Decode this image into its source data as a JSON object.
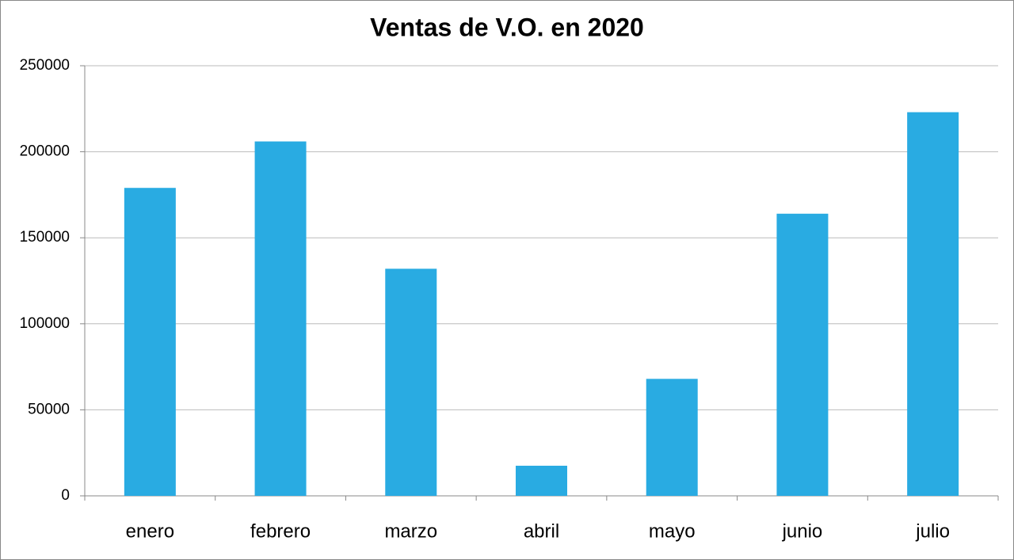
{
  "chart_data": {
    "type": "bar",
    "title": "Ventas de V.O. en 2020",
    "categories": [
      "enero",
      "febrero",
      "marzo",
      "abril",
      "mayo",
      "junio",
      "julio"
    ],
    "values": [
      179000,
      206000,
      132000,
      17500,
      68000,
      164000,
      223000
    ],
    "color": "#29abe2",
    "ylim": [
      0,
      250000
    ],
    "yticks": [
      0,
      50000,
      100000,
      150000,
      200000,
      250000
    ],
    "grid": true
  }
}
